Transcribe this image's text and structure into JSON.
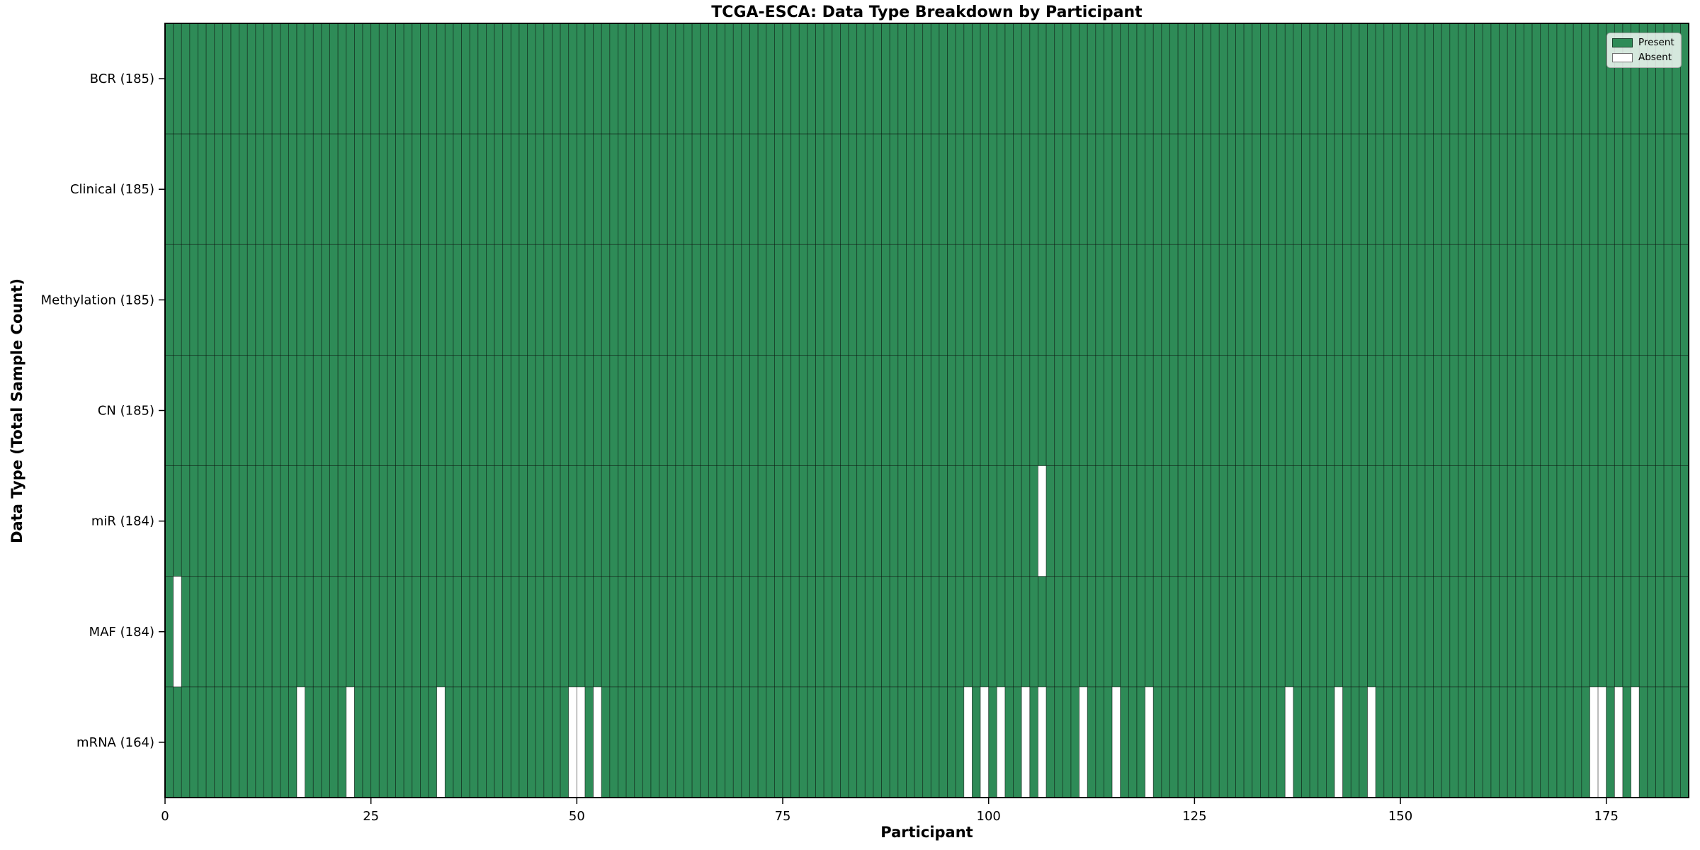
{
  "figure": {
    "title": "TCGA-ESCA: Data Type Breakdown by Participant",
    "xlabel": "Participant",
    "ylabel": "Data Type (Total Sample Count)"
  },
  "legend": {
    "items": [
      {
        "label": "Present",
        "color": "#2e8b57"
      },
      {
        "label": "Absent",
        "color": "#ffffff"
      }
    ]
  },
  "chart_data": {
    "type": "heatmap",
    "title": "TCGA-ESCA: Data Type Breakdown by Participant",
    "xlabel": "Participant",
    "ylabel": "Data Type (Total Sample Count)",
    "n_participants": 185,
    "x_ticks": [
      0,
      25,
      50,
      75,
      100,
      125,
      150,
      175
    ],
    "x_range": [
      0,
      185
    ],
    "grid": "cell-borders",
    "legend": [
      "Present",
      "Absent"
    ],
    "legend_position": "upper right",
    "colors": {
      "present": "#2e8b57",
      "absent": "#ffffff",
      "cell_border": "rgba(0,0,0,0.5)",
      "axis_spine": "#000000"
    },
    "rows": [
      {
        "data_type": "BCR",
        "label": "BCR (185)",
        "present_count": 185,
        "absent_participants": []
      },
      {
        "data_type": "Clinical",
        "label": "Clinical (185)",
        "present_count": 185,
        "absent_participants": []
      },
      {
        "data_type": "Methylation",
        "label": "Methylation (185)",
        "present_count": 185,
        "absent_participants": []
      },
      {
        "data_type": "CN",
        "label": "CN (185)",
        "present_count": 185,
        "absent_participants": []
      },
      {
        "data_type": "miR",
        "label": "miR (184)",
        "present_count": 184,
        "absent_participants": [
          106
        ]
      },
      {
        "data_type": "MAF",
        "label": "MAF (184)",
        "present_count": 184,
        "absent_participants": [
          1
        ]
      },
      {
        "data_type": "mRNA",
        "label": "mRNA (164)",
        "present_count": 164,
        "absent_participants": [
          16,
          22,
          33,
          49,
          50,
          52,
          97,
          99,
          101,
          104,
          106,
          111,
          115,
          119,
          136,
          142,
          146,
          173,
          174,
          176,
          178
        ]
      }
    ]
  }
}
